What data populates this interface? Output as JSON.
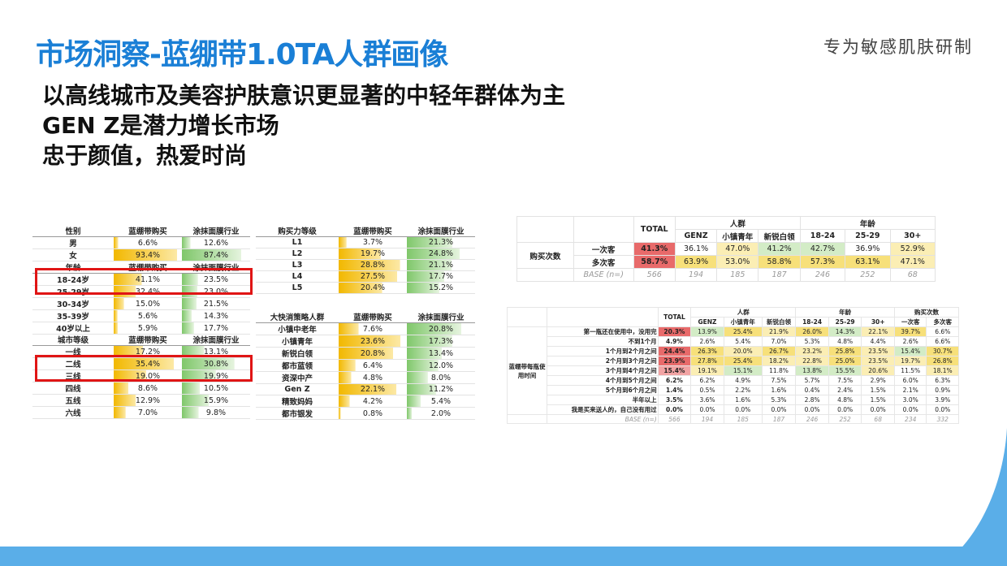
{
  "title": "市场洞察-蓝绷带1.0TA人群画像",
  "tagline": "专为敏感肌肤研制",
  "subtitles": [
    "以高线城市及美容护肤意识更显著的中轻年群体为主",
    "GEN Z是潜力增长市场",
    "忠于颜值，热爱时尚"
  ],
  "table_gender_age": {
    "headers": [
      "性别",
      "蓝绷带购买",
      "涂抹面膜行业"
    ],
    "rows": [
      [
        "男",
        "6.6%",
        "12.6%"
      ],
      [
        "女",
        "93.4%",
        "87.4%"
      ],
      [
        "年龄",
        "蓝绷带购买",
        "涂抹面膜行业"
      ],
      [
        "18-24岁",
        "41.1%",
        "23.5%"
      ],
      [
        "25-29岁",
        "32.4%",
        "23.0%"
      ],
      [
        "30-34岁",
        "15.0%",
        "21.5%"
      ],
      [
        "35-39岁",
        "5.6%",
        "14.3%"
      ],
      [
        "40岁以上",
        "5.9%",
        "17.7%"
      ]
    ]
  },
  "table_city": {
    "headers": [
      "城市等级",
      "蓝绷带购买",
      "涂抹面膜行业"
    ],
    "rows": [
      [
        "一线",
        "17.2%",
        "13.1%"
      ],
      [
        "二线",
        "35.4%",
        "30.8%"
      ],
      [
        "三线",
        "19.0%",
        "19.9%"
      ],
      [
        "四线",
        "8.6%",
        "10.5%"
      ],
      [
        "五线",
        "12.9%",
        "15.9%"
      ],
      [
        "六线",
        "7.0%",
        "9.8%"
      ]
    ]
  },
  "table_purchase_power": {
    "headers": [
      "购买力等级",
      "蓝绷带购买",
      "涂抹面膜行业"
    ],
    "rows": [
      [
        "L1",
        "3.7%",
        "21.3%"
      ],
      [
        "L2",
        "19.7%",
        "24.8%"
      ],
      [
        "L3",
        "28.8%",
        "21.1%"
      ],
      [
        "L4",
        "27.5%",
        "17.7%"
      ],
      [
        "L5",
        "20.4%",
        "15.2%"
      ]
    ]
  },
  "table_fmcg": {
    "headers": [
      "大快消策略人群",
      "蓝绷带购买",
      "涂抹面膜行业"
    ],
    "rows": [
      [
        "小镇中老年",
        "7.6%",
        "20.8%"
      ],
      [
        "小镇青年",
        "23.6%",
        "17.3%"
      ],
      [
        "新锐白领",
        "20.8%",
        "13.4%"
      ],
      [
        "都市蓝领",
        "6.4%",
        "12.0%"
      ],
      [
        "资深中产",
        "4.8%",
        "8.0%"
      ],
      [
        "Gen Z",
        "22.1%",
        "11.2%"
      ],
      [
        "精致妈妈",
        "4.2%",
        "5.4%"
      ],
      [
        "都市银发",
        "0.8%",
        "2.0%"
      ]
    ]
  },
  "table_freq": {
    "group_crowd": "人群",
    "group_age": "年龄",
    "total": "TOTAL",
    "cols": [
      "GENZ",
      "小镇青年",
      "新锐白领",
      "18-24",
      "25-29",
      "30+"
    ],
    "row_group": "购买次数",
    "rows": [
      {
        "label": "一次客",
        "vals": [
          "41.3%",
          "36.1%",
          "47.0%",
          "41.2%",
          "42.7%",
          "36.9%",
          "52.9%"
        ]
      },
      {
        "label": "多次客",
        "vals": [
          "58.7%",
          "63.9%",
          "53.0%",
          "58.8%",
          "57.3%",
          "63.1%",
          "47.1%"
        ]
      },
      {
        "label": "BASE (n=)",
        "vals": [
          "566",
          "194",
          "185",
          "187",
          "246",
          "252",
          "68"
        ]
      }
    ]
  },
  "table_bottle": {
    "group_crowd": "人群",
    "group_age": "年龄",
    "group_buy": "购买次数",
    "total": "TOTAL",
    "cols": [
      "GENZ",
      "小镇青年",
      "新锐白领",
      "18-24",
      "25-29",
      "30+",
      "一次客",
      "多次客"
    ],
    "row_group": "蓝绷带每瓶使用时间",
    "rows": [
      {
        "label": "第一瓶还在使用中，没用完",
        "vals": [
          "20.3%",
          "13.9%",
          "25.4%",
          "21.9%",
          "26.0%",
          "14.3%",
          "22.1%",
          "39.7%",
          "6.6%"
        ]
      },
      {
        "label": "不到1个月",
        "vals": [
          "4.9%",
          "2.6%",
          "5.4%",
          "7.0%",
          "5.3%",
          "4.8%",
          "4.4%",
          "2.6%",
          "6.6%"
        ]
      },
      {
        "label": "1个月到2个月之间",
        "vals": [
          "24.4%",
          "26.3%",
          "20.0%",
          "26.7%",
          "23.2%",
          "25.8%",
          "23.5%",
          "15.4%",
          "30.7%"
        ]
      },
      {
        "label": "2个月到3个月之间",
        "vals": [
          "23.9%",
          "27.8%",
          "25.4%",
          "18.2%",
          "22.8%",
          "25.0%",
          "23.5%",
          "19.7%",
          "26.8%"
        ]
      },
      {
        "label": "3个月到4个月之间",
        "vals": [
          "15.4%",
          "19.1%",
          "15.1%",
          "11.8%",
          "13.8%",
          "15.5%",
          "20.6%",
          "11.5%",
          "18.1%"
        ]
      },
      {
        "label": "4个月到5个月之间",
        "vals": [
          "6.2%",
          "6.2%",
          "4.9%",
          "7.5%",
          "5.7%",
          "7.5%",
          "2.9%",
          "6.0%",
          "6.3%"
        ]
      },
      {
        "label": "5个月到6个月之间",
        "vals": [
          "1.4%",
          "0.5%",
          "2.2%",
          "1.6%",
          "0.4%",
          "2.4%",
          "1.5%",
          "2.1%",
          "0.9%"
        ]
      },
      {
        "label": "半年以上",
        "vals": [
          "3.5%",
          "3.6%",
          "1.6%",
          "5.3%",
          "2.8%",
          "4.8%",
          "1.5%",
          "3.0%",
          "3.9%"
        ]
      },
      {
        "label": "我是买来送人的，自己没有用过",
        "vals": [
          "0.0%",
          "0.0%",
          "0.0%",
          "0.0%",
          "0.0%",
          "0.0%",
          "0.0%",
          "0.0%",
          "0.0%"
        ]
      },
      {
        "label": "BASE (n=)",
        "vals": [
          "566",
          "194",
          "185",
          "187",
          "246",
          "252",
          "68",
          "234",
          "332"
        ]
      }
    ]
  },
  "colors": {
    "title": "#1a7fd6",
    "highlight_box": "#e01515",
    "bottom_bar": "#5aaee8"
  }
}
